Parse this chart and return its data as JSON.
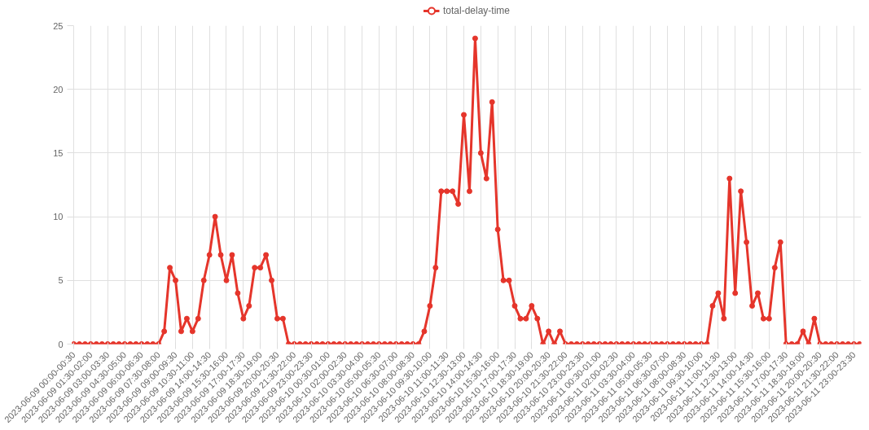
{
  "chart_data": {
    "type": "line",
    "categories": [
      "2023-06-09 00:00-00:30",
      null,
      null,
      "2023-06-09 01:30-02:00",
      null,
      null,
      "2023-06-09 03:00-03:30",
      null,
      null,
      "2023-06-09 04:30-05:00",
      null,
      null,
      "2023-06-09 06:00-06:30",
      null,
      null,
      "2023-06-09 07:30-08:00",
      null,
      null,
      "2023-06-09 09:00-09:30",
      null,
      null,
      "2023-06-09 10:30-11:00",
      null,
      null,
      "2023-06-09 14:00-14:30",
      null,
      null,
      "2023-06-09 15:30-16:00",
      null,
      null,
      "2023-06-09 17:00-17:30",
      null,
      null,
      "2023-06-09 18:30-19:00",
      null,
      null,
      "2023-06-09 20:00-20:30",
      null,
      null,
      "2023-06-09 21:30-22:00",
      null,
      null,
      "2023-06-09 23:00-23:30",
      null,
      null,
      "2023-06-10 00:30-01:00",
      null,
      null,
      "2023-06-10 02:00-02:30",
      null,
      null,
      "2023-06-10 03:30-04:00",
      null,
      null,
      "2023-06-10 05:00-05:30",
      null,
      null,
      "2023-06-10 06:30-07:00",
      null,
      null,
      "2023-06-10 08:00-08:30",
      null,
      null,
      "2023-06-10 09:30-10:00",
      null,
      null,
      "2023-06-10 11:00-11:30",
      null,
      null,
      "2023-06-10 12:30-13:00",
      null,
      null,
      "2023-06-10 14:00-14:30",
      null,
      null,
      "2023-06-10 15:30-16:00",
      null,
      null,
      "2023-06-10 17:00-17:30",
      null,
      null,
      "2023-06-10 18:30-19:00",
      null,
      null,
      "2023-06-10 20:00-20:30",
      null,
      null,
      "2023-06-10 21:30-22:00",
      null,
      null,
      "2023-06-10 23:00-23:30",
      null,
      null,
      "2023-06-11 00:30-01:00",
      null,
      null,
      "2023-06-11 02:00-02:30",
      null,
      null,
      "2023-06-11 03:30-04:00",
      null,
      null,
      "2023-06-11 05:00-05:30",
      null,
      null,
      "2023-06-11 06:30-07:00",
      null,
      null,
      "2023-06-11 08:00-08:30",
      null,
      null,
      "2023-06-11 09:30-10:00",
      null,
      null,
      "2023-06-11 11:00-11:30",
      null,
      null,
      "2023-06-11 12:30-13:00",
      null,
      null,
      "2023-06-11 14:00-14:30",
      null,
      null,
      "2023-06-11 15:30-16:00",
      null,
      null,
      "2023-06-11 17:00-17:30",
      null,
      null,
      "2023-06-11 18:30-19:00",
      null,
      null,
      "2023-06-11 20:00-20:30",
      null,
      null,
      "2023-06-11 21:30-22:00",
      null,
      null,
      "2023-06-11 23:00-23:30",
      null
    ],
    "series": [
      {
        "name": "total-delay-time",
        "color": "#e5352b",
        "values": [
          0,
          0,
          0,
          0,
          0,
          0,
          0,
          0,
          0,
          0,
          0,
          0,
          0,
          0,
          0,
          0,
          1,
          6,
          5,
          1,
          2,
          1,
          2,
          5,
          7,
          10,
          7,
          5,
          7,
          4,
          2,
          3,
          6,
          6,
          7,
          5,
          2,
          2,
          0,
          0,
          0,
          0,
          0,
          0,
          0,
          0,
          0,
          0,
          0,
          0,
          0,
          0,
          0,
          0,
          0,
          0,
          0,
          0,
          0,
          0,
          0,
          0,
          1,
          3,
          6,
          12,
          12,
          12,
          11,
          18,
          12,
          24,
          15,
          13,
          19,
          9,
          5,
          5,
          3,
          2,
          2,
          3,
          2,
          0,
          1,
          0,
          1,
          0,
          0,
          0,
          0,
          0,
          0,
          0,
          0,
          0,
          0,
          0,
          0,
          0,
          0,
          0,
          0,
          0,
          0,
          0,
          0,
          0,
          0,
          0,
          0,
          0,
          0,
          3,
          4,
          2,
          13,
          4,
          12,
          8,
          3,
          4,
          2,
          2,
          6,
          8,
          0,
          0,
          0,
          1,
          0,
          2,
          0,
          0,
          0,
          0,
          0,
          0,
          0,
          0
        ]
      }
    ],
    "ylim": [
      0,
      25
    ],
    "yticks": [
      0,
      5,
      10,
      15,
      20,
      25
    ],
    "grid": true,
    "legend": "top",
    "marker": "circle",
    "line_style": "solid"
  }
}
